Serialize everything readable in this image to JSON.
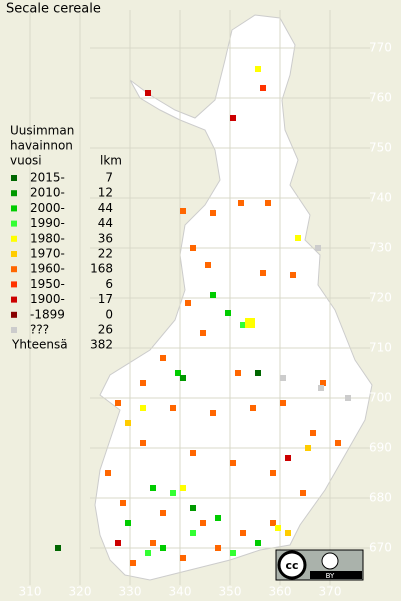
{
  "title": "Secale cereale",
  "legend": {
    "header": [
      "Uusimman",
      "havainnon",
      "vuosi"
    ],
    "count_header": "lkm",
    "rows": [
      {
        "label": "2015-",
        "count": 7,
        "color": "#006600"
      },
      {
        "label": "2010-",
        "count": 12,
        "color": "#009900"
      },
      {
        "label": "2000-",
        "count": 44,
        "color": "#00cc00"
      },
      {
        "label": "1990-",
        "count": 44,
        "color": "#33ff33"
      },
      {
        "label": "1980-",
        "count": 36,
        "color": "#ffff00"
      },
      {
        "label": "1970-",
        "count": 22,
        "color": "#ffcc00"
      },
      {
        "label": "1960-",
        "count": 168,
        "color": "#ff6600"
      },
      {
        "label": "1950-",
        "count": 6,
        "color": "#ff3300"
      },
      {
        "label": "1900-",
        "count": 17,
        "color": "#cc0000"
      },
      {
        "label": "-1899",
        "count": 0,
        "color": "#880000"
      },
      {
        "label": "???",
        "count": 26,
        "color": "#cccccc"
      }
    ],
    "total_label": "Yhteensä",
    "total": 382
  },
  "grid": {
    "northing": [
      770,
      760,
      750,
      740,
      730,
      720,
      710,
      700,
      690,
      680,
      670
    ],
    "easting": [
      310,
      320,
      330,
      340,
      350,
      360,
      370
    ]
  },
  "license": {
    "icon": "cc",
    "label": "BY"
  }
}
